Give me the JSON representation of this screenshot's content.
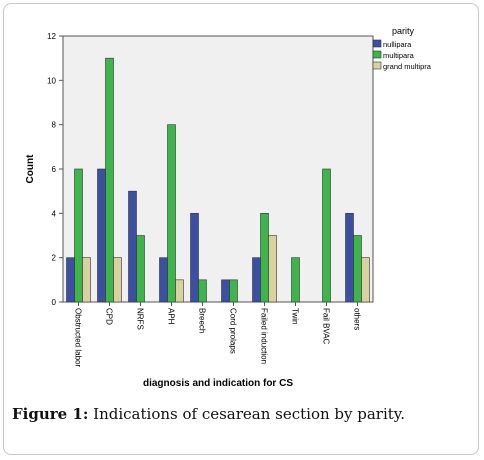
{
  "chart_data": {
    "type": "bar",
    "xlabel": "diagnosis and indication for CS",
    "ylabel": "Count",
    "ylim": [
      0,
      12
    ],
    "yticks": [
      0,
      2,
      4,
      6,
      8,
      10,
      12
    ],
    "grid": false,
    "legend": {
      "title": "parity",
      "placement": "top-right-outside"
    },
    "categories": [
      "Obstructed labor",
      "CPD",
      "NRFS",
      "APH",
      "Breech",
      "Cord prolaps",
      "Failed induction",
      "Twin",
      "Fail BVAC",
      "others"
    ],
    "series": [
      {
        "name": "nullipara",
        "color": "#3d4fa3",
        "values": [
          2,
          6,
          5,
          2,
          4,
          1,
          2,
          0,
          0,
          4
        ]
      },
      {
        "name": "multipara",
        "color": "#3db54a",
        "values": [
          6,
          11,
          3,
          8,
          1,
          1,
          4,
          2,
          6,
          3
        ]
      },
      {
        "name": "grand multipra",
        "color": "#d8d2a0",
        "values": [
          2,
          2,
          0,
          1,
          0,
          0,
          3,
          0,
          0,
          2
        ]
      }
    ]
  },
  "caption": {
    "label": "Figure 1:",
    "text": " Indications of cesarean section by parity."
  }
}
